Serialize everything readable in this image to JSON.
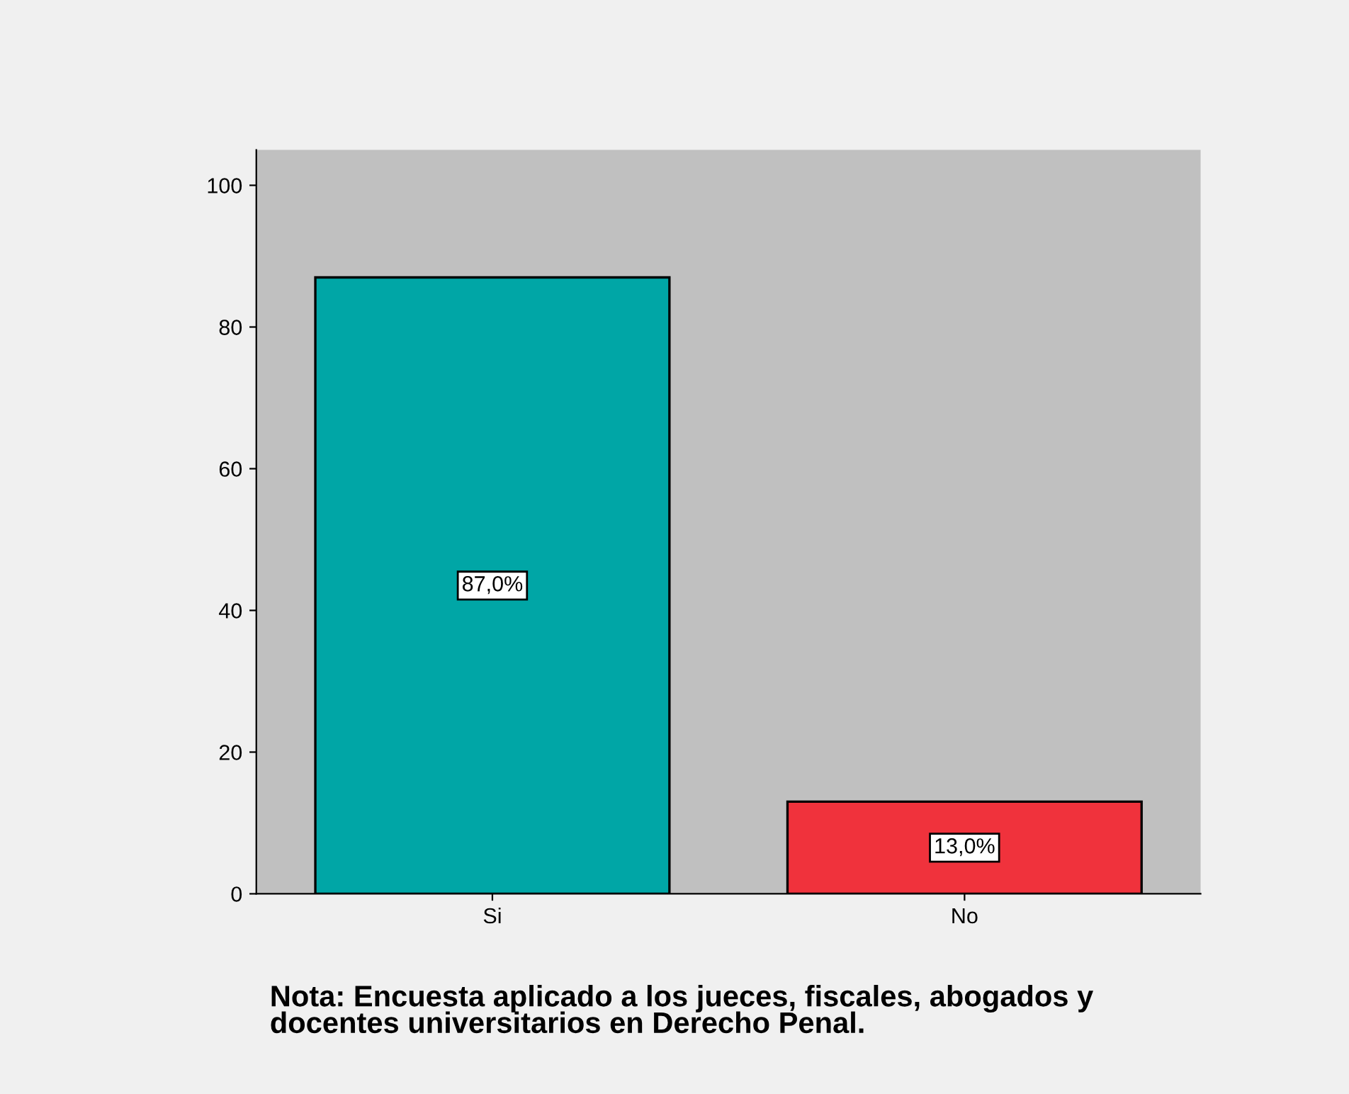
{
  "chart_data": {
    "type": "bar",
    "categories": [
      "Si",
      "No"
    ],
    "values": [
      87.0,
      13.0
    ],
    "colors": [
      "#00a6a6",
      "#f0323c"
    ],
    "value_labels": [
      "87,0%",
      "13,0%"
    ],
    "ylim": [
      0,
      105
    ],
    "yticks": [
      0,
      20,
      40,
      60,
      80,
      100
    ],
    "grid": false,
    "legend": false,
    "annotations": [
      "Nota: Encuesta aplicado a los jueces, fiscales, abogados y\ndocentes universitarios en Derecho Penal."
    ]
  }
}
